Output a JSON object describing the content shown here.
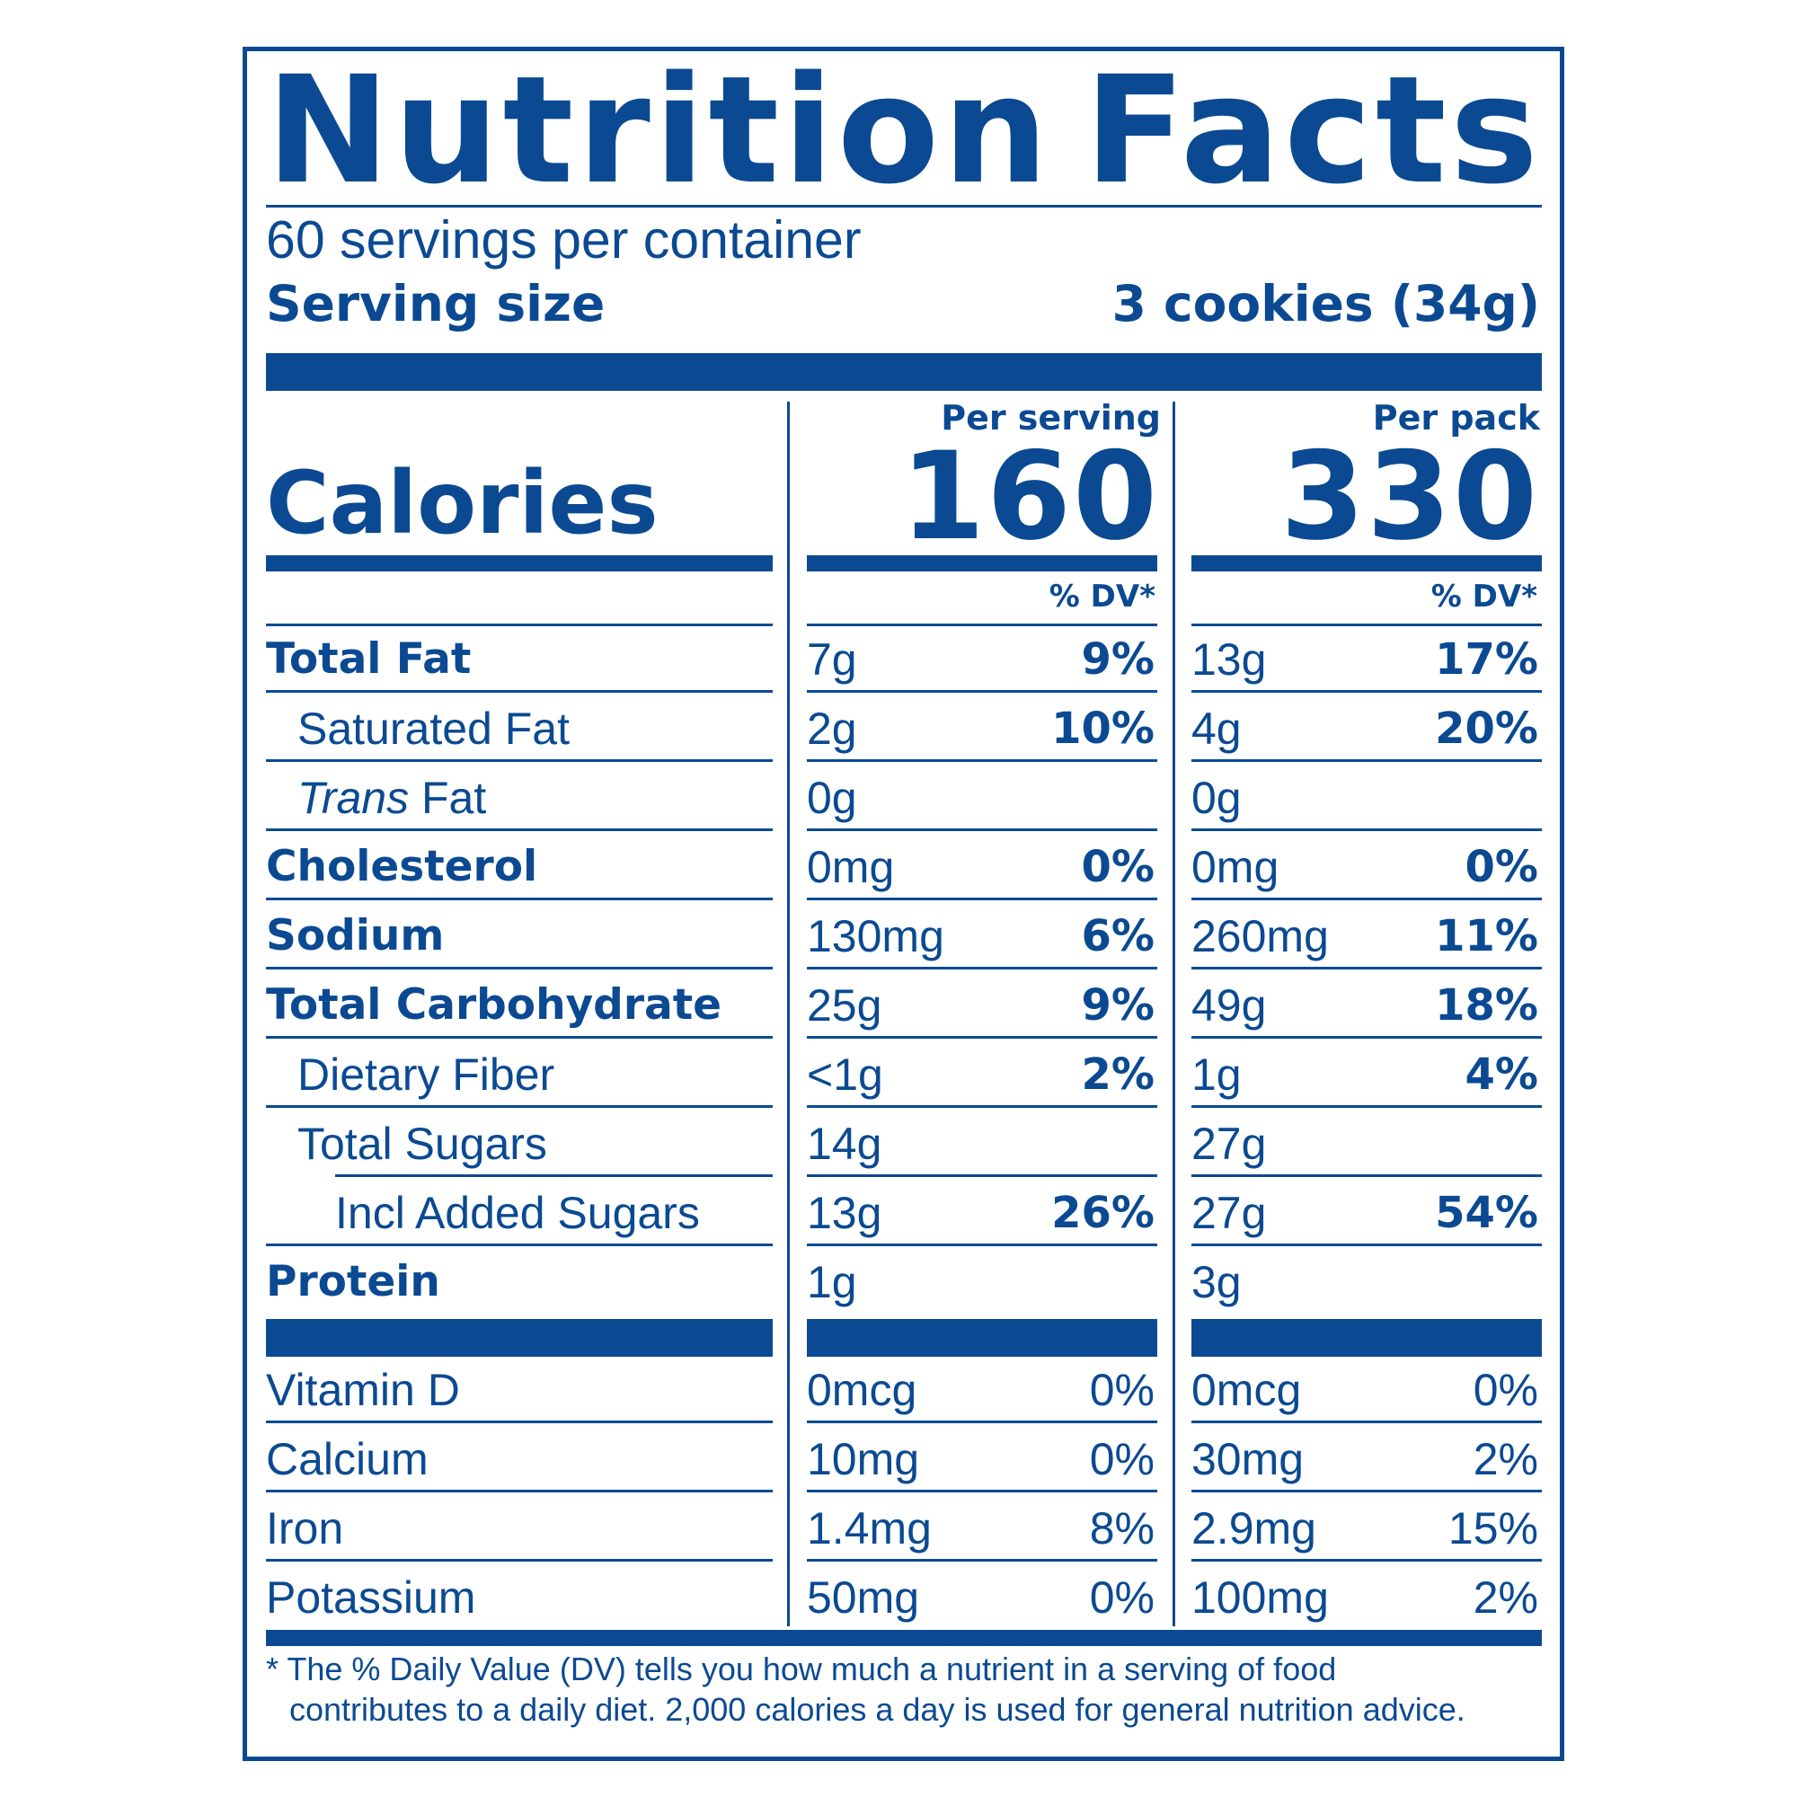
{
  "title_words": [
    "Nutrition",
    "Facts"
  ],
  "servings_per_container": "60 servings per container",
  "serving_size": {
    "label": "Serving size",
    "value": "3 cookies (34g)"
  },
  "columns": {
    "per_serving": "Per serving",
    "per_pack": "Per pack",
    "dv_header": "% DV*"
  },
  "calories": {
    "label": "Calories",
    "per_serving": "160",
    "per_pack": "330"
  },
  "nutrients": [
    {
      "name": "Total Fat",
      "serving_amount": "7g",
      "serving_dv": "9%",
      "pack_amount": "13g",
      "pack_dv": "17%"
    },
    {
      "name": "Saturated Fat",
      "serving_amount": "2g",
      "serving_dv": "10%",
      "pack_amount": "4g",
      "pack_dv": "20%"
    },
    {
      "name_italic": "Trans",
      "name_rest": " Fat",
      "serving_amount": "0g",
      "serving_dv": "",
      "pack_amount": "0g",
      "pack_dv": ""
    },
    {
      "name": "Cholesterol",
      "serving_amount": "0mg",
      "serving_dv": "0%",
      "pack_amount": "0mg",
      "pack_dv": "0%"
    },
    {
      "name": "Sodium",
      "serving_amount": "130mg",
      "serving_dv": "6%",
      "pack_amount": "260mg",
      "pack_dv": "11%"
    },
    {
      "name": "Total Carbohydrate",
      "serving_amount": "25g",
      "serving_dv": "9%",
      "pack_amount": "49g",
      "pack_dv": "18%"
    },
    {
      "name": "Dietary Fiber",
      "serving_amount": "<1g",
      "serving_dv": "2%",
      "pack_amount": "1g",
      "pack_dv": "4%"
    },
    {
      "name": "Total Sugars",
      "serving_amount": "14g",
      "serving_dv": "",
      "pack_amount": "27g",
      "pack_dv": ""
    },
    {
      "name": "Incl Added Sugars",
      "serving_amount": "13g",
      "serving_dv": "26%",
      "pack_amount": "27g",
      "pack_dv": "54%"
    },
    {
      "name": "Protein",
      "serving_amount": "1g",
      "serving_dv": "",
      "pack_amount": "3g",
      "pack_dv": ""
    }
  ],
  "vitamins": [
    {
      "name": "Vitamin D",
      "serving_amount": "0mcg",
      "serving_dv": "0%",
      "pack_amount": "0mcg",
      "pack_dv": "0%"
    },
    {
      "name": "Calcium",
      "serving_amount": "10mg",
      "serving_dv": "0%",
      "pack_amount": "30mg",
      "pack_dv": "2%"
    },
    {
      "name": "Iron",
      "serving_amount": "1.4mg",
      "serving_dv": "8%",
      "pack_amount": "2.9mg",
      "pack_dv": "15%"
    },
    {
      "name": "Potassium",
      "serving_amount": "50mg",
      "serving_dv": "0%",
      "pack_amount": "100mg",
      "pack_dv": "2%"
    }
  ],
  "footnote": {
    "line1": "* The % Daily Value (DV) tells you how much a nutrient in a serving of food",
    "line2": "contributes to a daily diet. 2,000 calories a day is used for general nutrition advice."
  },
  "colors": {
    "label_blue": "#0b4a92",
    "background": "#ffffff"
  }
}
